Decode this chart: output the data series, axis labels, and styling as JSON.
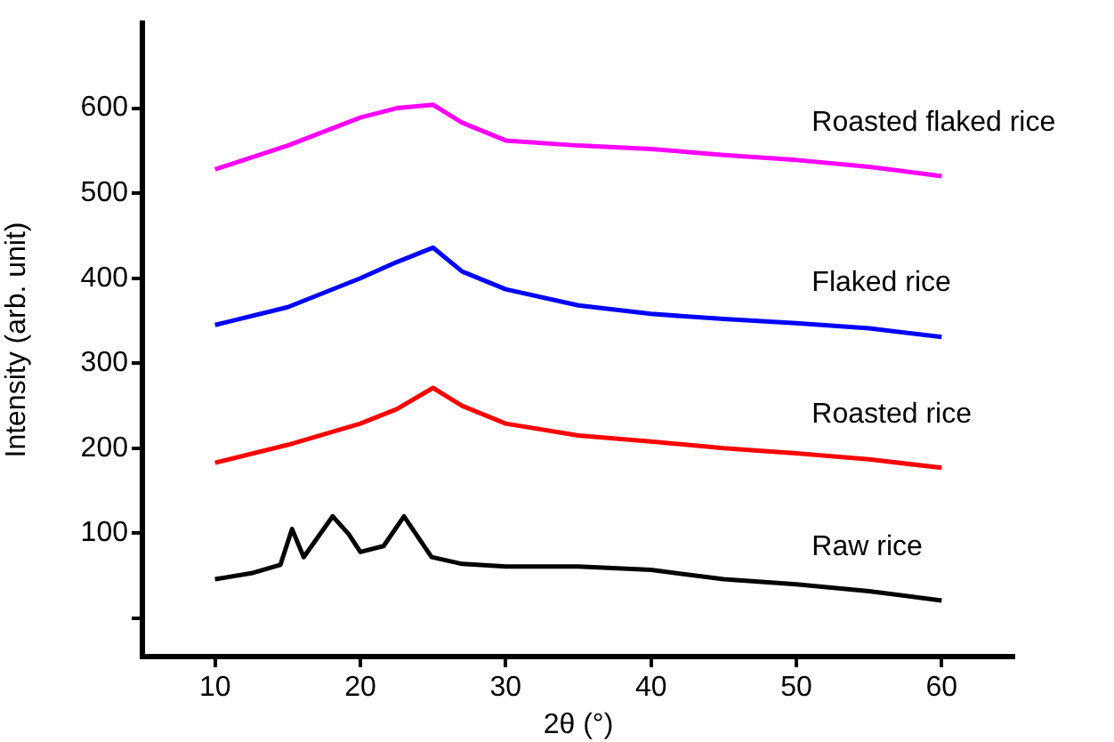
{
  "chart_data": {
    "type": "line",
    "xlabel": "2θ (°)",
    "ylabel": "Intensity (arb. unit)",
    "xlim": [
      5,
      65
    ],
    "xticks": [
      10,
      20,
      30,
      40,
      50,
      60
    ],
    "ylim": [
      -45,
      700
    ],
    "yticks": [
      {
        "value": 0,
        "label": null
      },
      100,
      200,
      300,
      400,
      500,
      600
    ],
    "grid": false,
    "legend": false,
    "marker": "none",
    "line_style": "solid",
    "series": [
      {
        "name": "Raw rice",
        "color": "#000000",
        "x": [
          10,
          12.5,
          14.5,
          15.3,
          16.1,
          18.1,
          19.2,
          20,
          21.6,
          23,
          24.9,
          27,
          30,
          35,
          40,
          45,
          50,
          55,
          60
        ],
        "values": [
          46,
          53,
          63,
          105,
          72,
          120,
          99,
          78,
          85,
          120,
          72,
          64,
          61,
          61,
          57,
          46,
          40,
          32,
          21
        ]
      },
      {
        "name": "Roasted rice",
        "color": "#ff0000",
        "x": [
          10,
          15,
          20,
          22.5,
          25,
          27,
          30,
          35,
          40,
          45,
          50,
          55,
          60
        ],
        "values": [
          183,
          204,
          229,
          246,
          271,
          250,
          229,
          215,
          208,
          200,
          194,
          187,
          177
        ]
      },
      {
        "name": "Flaked rice",
        "color": "#0000ff",
        "x": [
          10,
          15,
          20,
          22.5,
          25,
          27,
          30,
          35,
          40,
          45,
          50,
          55,
          60
        ],
        "values": [
          345,
          366,
          400,
          419,
          436,
          408,
          387,
          368,
          358,
          352,
          347,
          341,
          331
        ]
      },
      {
        "name": "Roasted flaked rice",
        "color": "#ff00ff",
        "x": [
          10,
          15,
          20,
          22.5,
          25,
          27,
          30,
          35,
          40,
          45,
          50,
          55,
          60
        ],
        "values": [
          528,
          556,
          589,
          600,
          604,
          583,
          562,
          556,
          552,
          545,
          539,
          531,
          520
        ]
      }
    ]
  }
}
